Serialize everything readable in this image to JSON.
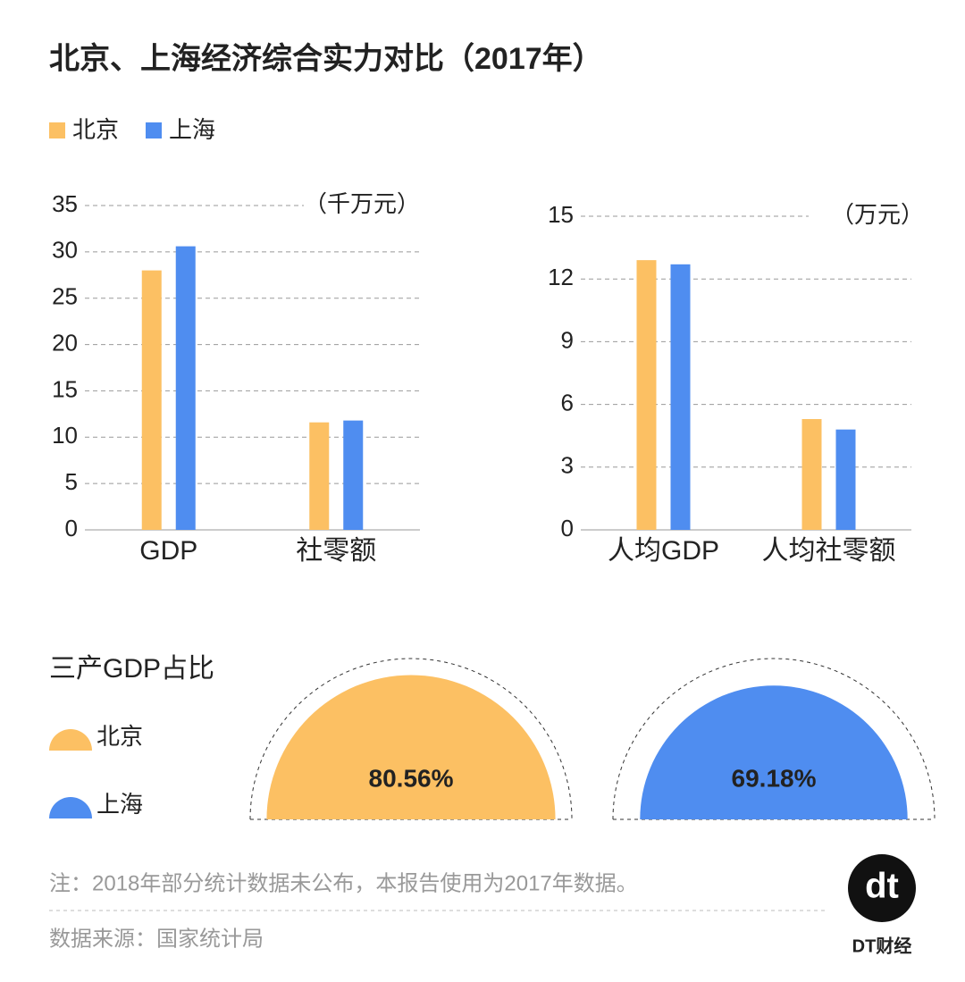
{
  "title": "北京、上海经济综合实力对比（2017年）",
  "chart_data": [
    {
      "type": "bar",
      "unit": "（千万元）",
      "categories": [
        "GDP",
        "社零额"
      ],
      "series": [
        {
          "name": "北京",
          "color": "#fcc063",
          "values": [
            28.0,
            11.6
          ]
        },
        {
          "name": "上海",
          "color": "#4f8df0",
          "values": [
            30.6,
            11.8
          ]
        }
      ],
      "ylim": [
        0,
        35
      ],
      "yticks": [
        0,
        5,
        10,
        15,
        20,
        25,
        30,
        35
      ],
      "grid": true
    },
    {
      "type": "bar",
      "unit": "（万元）",
      "categories": [
        "人均GDP",
        "人均社零额"
      ],
      "series": [
        {
          "color": "#fcc063",
          "values": [
            12.9,
            5.3
          ]
        },
        {
          "color": "#4f8df0",
          "values": [
            12.7,
            4.8
          ]
        }
      ],
      "ylim": [
        0,
        15
      ],
      "yticks": [
        0,
        3,
        6,
        9,
        12,
        15
      ],
      "grid": true
    },
    {
      "type": "semicircle",
      "title": "三产GDP占比",
      "ylim": [
        0,
        100
      ],
      "series": [
        {
          "name": "北京",
          "color": "#fcc063",
          "values": [
            80.56
          ],
          "value_labels": [
            "80.56%"
          ]
        },
        {
          "name": "上海",
          "color": "#4f8df0",
          "values": [
            69.18
          ],
          "value_labels": [
            "69.18%"
          ]
        }
      ]
    }
  ],
  "note": "注：2018年部分统计数据未公布，本报告使用为2017年数据。",
  "source": "数据来源：国家统计局",
  "logo": {
    "mark": "dt",
    "name": "DT财经"
  }
}
